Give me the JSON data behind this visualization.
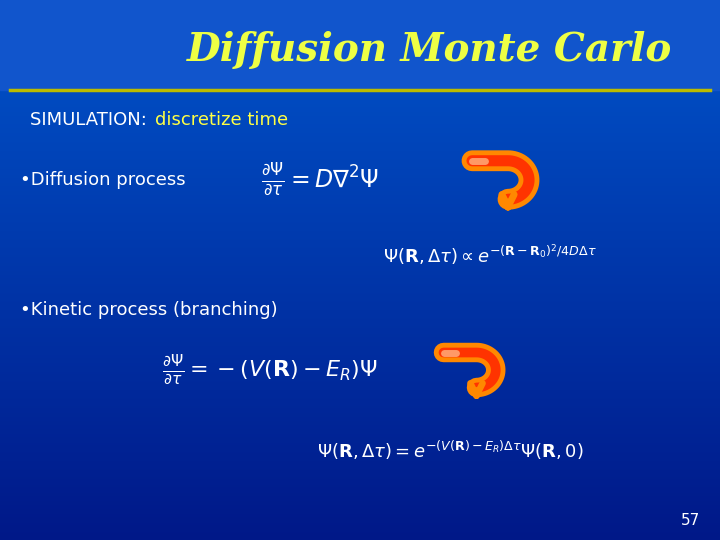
{
  "title": "Diffusion Monte Carlo",
  "title_color": "#EEFF44",
  "title_fontsize": 28,
  "bg_color": "#0055CC",
  "bg_color_bottom": "#001888",
  "slide_number": "57",
  "simulation_text": "SIMULATION: ",
  "simulation_text2": "discretize time",
  "diffusion_bullet": "•Diffusion process",
  "kinetic_bullet": "•Kinetic process (branching)",
  "header_line_color": "#CCCC00",
  "text_color": "#FFFFFF",
  "sim_color1": "#FFFFFF",
  "sim_color2": "#FFFF44",
  "formula_color": "#FFFFFF",
  "arrow_outer": "#FF8800",
  "arrow_inner": "#FF3300",
  "arrow_highlight": "#FF9966"
}
